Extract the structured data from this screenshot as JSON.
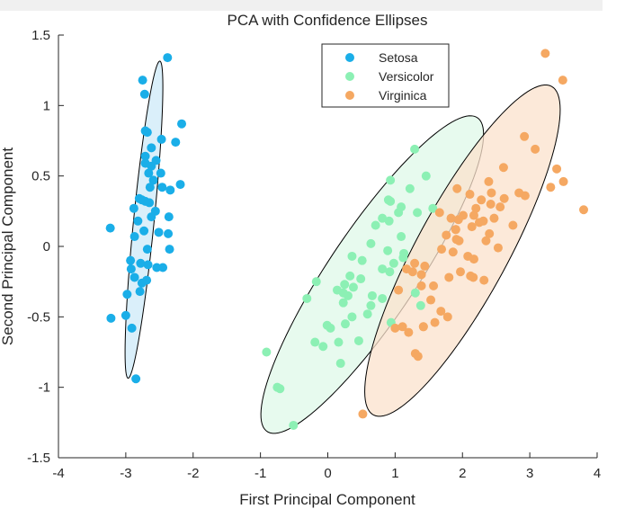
{
  "chart_data": {
    "type": "scatter",
    "title": "PCA with Confidence Ellipses",
    "xlabel": "First Principal Component",
    "ylabel": "Second Principal Component",
    "xlim": [
      -4,
      4
    ],
    "ylim": [
      -1.5,
      1.5
    ],
    "xticks": [
      -4,
      -3,
      -2,
      -1,
      0,
      1,
      2,
      3,
      4
    ],
    "yticks": [
      -1.5,
      -1,
      -0.5,
      0,
      0.5,
      1,
      1.5
    ],
    "xtick_labels": [
      "-4",
      "-3",
      "-2",
      "-1",
      "0",
      "1",
      "2",
      "3",
      "4"
    ],
    "ytick_labels": [
      "-1.5",
      "-1",
      "-0.5",
      "0",
      "0.5",
      "1",
      "1.5"
    ],
    "grid": false,
    "legend_position": "top-center",
    "series": [
      {
        "name": "Setosa",
        "color": "#1aaee8",
        "ellipse_fill": "#cdeaf8",
        "ellipse": {
          "cx": -2.73,
          "cy": 0.19,
          "semi_major": 1.15,
          "semi_minor": 0.15,
          "angle_deg": 78
        },
        "points": [
          [
            -2.38,
            1.34
          ],
          [
            -2.75,
            1.18
          ],
          [
            -2.72,
            1.08
          ],
          [
            -2.17,
            0.87
          ],
          [
            -2.71,
            0.82
          ],
          [
            -2.68,
            0.81
          ],
          [
            -2.47,
            0.76
          ],
          [
            -2.26,
            0.74
          ],
          [
            -2.62,
            0.7
          ],
          [
            -2.71,
            0.64
          ],
          [
            -2.55,
            0.61
          ],
          [
            -2.71,
            0.59
          ],
          [
            -2.62,
            0.57
          ],
          [
            -2.48,
            0.52
          ],
          [
            -2.66,
            0.52
          ],
          [
            -2.59,
            0.47
          ],
          [
            -2.64,
            0.42
          ],
          [
            -2.46,
            0.42
          ],
          [
            -2.19,
            0.44
          ],
          [
            -2.34,
            0.4
          ],
          [
            -2.8,
            0.34
          ],
          [
            -2.76,
            0.33
          ],
          [
            -2.71,
            0.32
          ],
          [
            -2.88,
            0.27
          ],
          [
            -2.65,
            0.31
          ],
          [
            -2.56,
            0.25
          ],
          [
            -2.82,
            0.18
          ],
          [
            -2.62,
            0.21
          ],
          [
            -2.36,
            0.21
          ],
          [
            -2.73,
            0.11
          ],
          [
            -3.23,
            0.13
          ],
          [
            -2.51,
            0.1
          ],
          [
            -2.87,
            0.07
          ],
          [
            -2.37,
            0.09
          ],
          [
            -2.68,
            -0.02
          ],
          [
            -2.35,
            -0.02
          ],
          [
            -2.93,
            -0.1
          ],
          [
            -2.78,
            -0.12
          ],
          [
            -2.67,
            -0.13
          ],
          [
            -2.54,
            -0.15
          ],
          [
            -2.45,
            -0.15
          ],
          [
            -2.92,
            -0.16
          ],
          [
            -2.87,
            -0.22
          ],
          [
            -2.69,
            -0.24
          ],
          [
            -2.76,
            -0.26
          ],
          [
            -2.98,
            -0.34
          ],
          [
            -2.79,
            -0.32
          ],
          [
            -3.0,
            -0.49
          ],
          [
            -3.22,
            -0.51
          ],
          [
            -2.91,
            -0.58
          ],
          [
            -2.85,
            -0.94
          ]
        ]
      },
      {
        "name": "Versicolor",
        "color": "#8cf0b4",
        "ellipse_fill": "#dff8e8",
        "ellipse": {
          "cx": 0.66,
          "cy": -0.2,
          "semi_major": 1.95,
          "semi_minor": 0.45,
          "angle_deg": 33
        },
        "points": [
          [
            1.29,
            0.69
          ],
          [
            0.93,
            0.32
          ],
          [
            1.46,
            0.5
          ],
          [
            0.19,
            -0.83
          ],
          [
            1.09,
            0.07
          ],
          [
            0.64,
            -0.42
          ],
          [
            1.09,
            0.28
          ],
          [
            -0.75,
            -1.0
          ],
          [
            0.91,
            0.18
          ],
          [
            -0.01,
            -0.56
          ],
          [
            -0.51,
            -1.27
          ],
          [
            0.51,
            -0.1
          ],
          [
            0.26,
            -0.55
          ],
          [
            0.98,
            -0.12
          ],
          [
            -0.17,
            -0.25
          ],
          [
            0.93,
            0.47
          ],
          [
            0.66,
            -0.35
          ],
          [
            0.23,
            -0.33
          ],
          [
            0.94,
            -0.54
          ],
          [
            0.04,
            -0.58
          ],
          [
            1.12,
            -0.08
          ],
          [
            0.36,
            -0.07
          ],
          [
            1.3,
            -0.33
          ],
          [
            0.92,
            -0.18
          ],
          [
            0.71,
            0.15
          ],
          [
            0.9,
            0.33
          ],
          [
            1.33,
            0.24
          ],
          [
            1.56,
            0.27
          ],
          [
            0.81,
            -0.16
          ],
          [
            -0.31,
            -0.37
          ],
          [
            -0.07,
            -0.71
          ],
          [
            -0.19,
            -0.68
          ],
          [
            0.14,
            -0.31
          ],
          [
            1.38,
            -0.42
          ],
          [
            0.59,
            -0.48
          ],
          [
            0.81,
            0.2
          ],
          [
            1.22,
            0.41
          ],
          [
            0.81,
            -0.37
          ],
          [
            0.25,
            -0.27
          ],
          [
            0.16,
            -0.68
          ],
          [
            0.46,
            -0.67
          ],
          [
            0.89,
            -0.03
          ],
          [
            0.23,
            -0.4
          ],
          [
            -0.71,
            -1.01
          ],
          [
            0.36,
            -0.5
          ],
          [
            0.33,
            -0.21
          ],
          [
            0.38,
            -0.29
          ],
          [
            0.64,
            0.02
          ],
          [
            -0.91,
            -0.75
          ],
          [
            0.3,
            -0.35
          ],
          [
            1.05,
            0.24
          ],
          [
            1.13,
            -0.05
          ],
          [
            0.49,
            -0.23
          ]
        ]
      },
      {
        "name": "Virginica",
        "color": "#f5a862",
        "ellipse_fill": "#fbe2cc",
        "ellipse": {
          "cx": 2.0,
          "cy": -0.03,
          "semi_major": 1.8,
          "semi_minor": 0.5,
          "angle_deg": 38
        },
        "points": [
          [
            2.53,
            -0.01
          ],
          [
            1.42,
            -0.57
          ],
          [
            2.62,
            0.34
          ],
          [
            1.97,
            -0.18
          ],
          [
            2.35,
            0.04
          ],
          [
            3.4,
            0.55
          ],
          [
            0.52,
            -1.19
          ],
          [
            2.93,
            0.36
          ],
          [
            2.32,
            -0.24
          ],
          [
            2.92,
            0.78
          ],
          [
            1.66,
            0.24
          ],
          [
            1.8,
            -0.22
          ],
          [
            2.17,
            0.22
          ],
          [
            1.34,
            -0.78
          ],
          [
            1.59,
            -0.54
          ],
          [
            1.9,
            0.12
          ],
          [
            1.95,
            0.04
          ],
          [
            3.49,
            1.18
          ],
          [
            3.8,
            0.26
          ],
          [
            1.3,
            -0.76
          ],
          [
            2.43,
            0.38
          ],
          [
            1.2,
            -0.61
          ],
          [
            3.5,
            0.46
          ],
          [
            1.39,
            -0.2
          ],
          [
            2.28,
            0.33
          ],
          [
            2.61,
            0.56
          ],
          [
            1.26,
            -0.18
          ],
          [
            1.29,
            -0.12
          ],
          [
            2.12,
            -0.21
          ],
          [
            2.39,
            0.46
          ],
          [
            2.84,
            0.38
          ],
          [
            3.23,
            1.37
          ],
          [
            2.16,
            -0.22
          ],
          [
            1.44,
            -0.14
          ],
          [
            1.78,
            -0.5
          ],
          [
            3.08,
            0.69
          ],
          [
            2.14,
            0.14
          ],
          [
            1.91,
            0.05
          ],
          [
            1.17,
            -0.16
          ],
          [
            2.11,
            0.37
          ],
          [
            2.31,
            0.18
          ],
          [
            1.92,
            0.41
          ],
          [
            1.42,
            -0.57
          ],
          [
            2.56,
            0.28
          ],
          [
            2.42,
            0.3
          ],
          [
            1.94,
            0.19
          ],
          [
            1.53,
            -0.38
          ],
          [
            1.76,
            0.08
          ],
          [
            1.9,
            0.12
          ],
          [
            1.39,
            -0.28
          ],
          [
            1.83,
            0.2
          ],
          [
            2.01,
            0.22
          ],
          [
            2.25,
            0.17
          ],
          [
            1.69,
            -0.02
          ],
          [
            2.08,
            -0.07
          ],
          [
            1.57,
            -0.28
          ],
          [
            2.17,
            -0.09
          ],
          [
            1.86,
            -0.04
          ],
          [
            1.0,
            -0.58
          ],
          [
            1.68,
            -0.46
          ],
          [
            2.47,
            0.2
          ],
          [
            2.2,
            0.27
          ],
          [
            2.4,
            0.09
          ],
          [
            1.11,
            -0.57
          ],
          [
            1.05,
            -0.31
          ],
          [
            2.75,
            0.15
          ],
          [
            3.31,
            0.42
          ]
        ]
      }
    ]
  }
}
